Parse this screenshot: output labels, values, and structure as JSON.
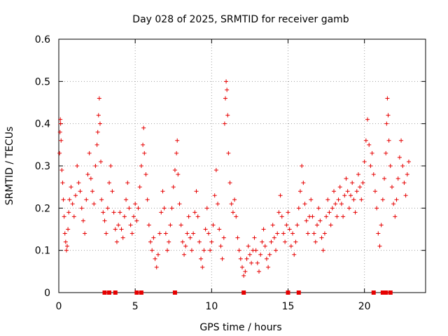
{
  "chart_data": {
    "type": "scatter",
    "title": "Day 028 of 2025, SRMTID for receiver gamb",
    "xlabel": "GPS time / hours",
    "ylabel": "SRMTID / TECUs",
    "xlim": [
      0,
      24
    ],
    "ylim": [
      0,
      0.6
    ],
    "x_ticks": [
      0,
      5,
      10,
      15,
      20
    ],
    "y_ticks": [
      0,
      0.1,
      0.2,
      0.3,
      0.4,
      0.5,
      0.6
    ],
    "x_tick_labels": [
      "0",
      "5",
      "10",
      "15",
      "20"
    ],
    "y_tick_labels": [
      "0",
      "0.1",
      "0.2",
      "0.3",
      "0.4",
      "0.5",
      "0.6"
    ],
    "grid": true,
    "marker": "+",
    "color": "#e60000",
    "series": [
      {
        "name": "SRMTID",
        "points": [
          [
            0.05,
            0.33
          ],
          [
            0.08,
            0.38
          ],
          [
            0.1,
            0.41
          ],
          [
            0.12,
            0.4
          ],
          [
            0.15,
            0.36
          ],
          [
            0.2,
            0.29
          ],
          [
            0.25,
            0.26
          ],
          [
            0.3,
            0.22
          ],
          [
            0.35,
            0.18
          ],
          [
            0.4,
            0.14
          ],
          [
            0.45,
            0.12
          ],
          [
            0.5,
            0.1
          ],
          [
            0.55,
            0.11
          ],
          [
            0.6,
            0.15
          ],
          [
            0.65,
            0.19
          ],
          [
            0.7,
            0.22
          ],
          [
            0.8,
            0.25
          ],
          [
            0.9,
            0.21
          ],
          [
            1.0,
            0.18
          ],
          [
            1.1,
            0.23
          ],
          [
            1.2,
            0.3
          ],
          [
            1.3,
            0.26
          ],
          [
            1.4,
            0.24
          ],
          [
            1.5,
            0.2
          ],
          [
            1.6,
            0.17
          ],
          [
            1.7,
            0.14
          ],
          [
            1.8,
            0.22
          ],
          [
            1.9,
            0.28
          ],
          [
            2.0,
            0.33
          ],
          [
            2.1,
            0.27
          ],
          [
            2.2,
            0.24
          ],
          [
            2.3,
            0.21
          ],
          [
            2.4,
            0.3
          ],
          [
            2.5,
            0.35
          ],
          [
            2.55,
            0.38
          ],
          [
            2.6,
            0.42
          ],
          [
            2.65,
            0.46
          ],
          [
            2.7,
            0.4
          ],
          [
            2.75,
            0.31
          ],
          [
            2.8,
            0.22
          ],
          [
            2.9,
            0.19
          ],
          [
            3.0,
            0.17
          ],
          [
            3.1,
            0.14
          ],
          [
            3.2,
            0.2
          ],
          [
            3.3,
            0.26
          ],
          [
            3.4,
            0.3
          ],
          [
            3.5,
            0.24
          ],
          [
            3.6,
            0.19
          ],
          [
            3.7,
            0.15
          ],
          [
            3.8,
            0.12
          ],
          [
            3.9,
            0.16
          ],
          [
            4.0,
            0.19
          ],
          [
            4.1,
            0.15
          ],
          [
            4.2,
            0.13
          ],
          [
            4.3,
            0.18
          ],
          [
            4.4,
            0.22
          ],
          [
            4.5,
            0.26
          ],
          [
            4.6,
            0.2
          ],
          [
            4.7,
            0.16
          ],
          [
            4.8,
            0.14
          ],
          [
            4.9,
            0.18
          ],
          [
            5.0,
            0.21
          ],
          [
            5.1,
            0.17
          ],
          [
            5.2,
            0.2
          ],
          [
            5.3,
            0.25
          ],
          [
            5.4,
            0.3
          ],
          [
            5.5,
            0.35
          ],
          [
            5.55,
            0.39
          ],
          [
            5.6,
            0.33
          ],
          [
            5.7,
            0.28
          ],
          [
            5.8,
            0.22
          ],
          [
            5.9,
            0.16
          ],
          [
            6.0,
            0.12
          ],
          [
            6.1,
            0.1
          ],
          [
            6.2,
            0.13
          ],
          [
            6.3,
            0.08
          ],
          [
            6.4,
            0.06
          ],
          [
            6.5,
            0.09
          ],
          [
            6.6,
            0.14
          ],
          [
            6.7,
            0.19
          ],
          [
            6.8,
            0.24
          ],
          [
            6.9,
            0.2
          ],
          [
            7.0,
            0.14
          ],
          [
            7.1,
            0.1
          ],
          [
            7.2,
            0.12
          ],
          [
            7.3,
            0.16
          ],
          [
            7.4,
            0.2
          ],
          [
            7.5,
            0.25
          ],
          [
            7.6,
            0.29
          ],
          [
            7.7,
            0.33
          ],
          [
            7.75,
            0.36
          ],
          [
            7.8,
            0.28
          ],
          [
            7.9,
            0.21
          ],
          [
            8.0,
            0.16
          ],
          [
            8.1,
            0.12
          ],
          [
            8.2,
            0.09
          ],
          [
            8.3,
            0.11
          ],
          [
            8.4,
            0.14
          ],
          [
            8.5,
            0.18
          ],
          [
            8.6,
            0.13
          ],
          [
            8.7,
            0.1
          ],
          [
            8.8,
            0.14
          ],
          [
            8.9,
            0.19
          ],
          [
            9.0,
            0.24
          ],
          [
            9.1,
            0.18
          ],
          [
            9.2,
            0.12
          ],
          [
            9.3,
            0.08
          ],
          [
            9.4,
            0.06
          ],
          [
            9.5,
            0.1
          ],
          [
            9.6,
            0.15
          ],
          [
            9.7,
            0.2
          ],
          [
            9.8,
            0.14
          ],
          [
            9.9,
            0.1
          ],
          [
            10.0,
            0.12
          ],
          [
            10.1,
            0.16
          ],
          [
            10.2,
            0.23
          ],
          [
            10.3,
            0.29
          ],
          [
            10.4,
            0.21
          ],
          [
            10.5,
            0.15
          ],
          [
            10.6,
            0.11
          ],
          [
            10.7,
            0.08
          ],
          [
            10.8,
            0.13
          ],
          [
            10.85,
            0.4
          ],
          [
            10.9,
            0.46
          ],
          [
            10.95,
            0.5
          ],
          [
            11.0,
            0.48
          ],
          [
            11.05,
            0.42
          ],
          [
            11.1,
            0.33
          ],
          [
            11.2,
            0.26
          ],
          [
            11.3,
            0.21
          ],
          [
            11.4,
            0.19
          ],
          [
            11.5,
            0.22
          ],
          [
            11.6,
            0.18
          ],
          [
            11.7,
            0.13
          ],
          [
            11.8,
            0.1
          ],
          [
            11.9,
            0.08
          ],
          [
            12.0,
            0.06
          ],
          [
            12.1,
            0.04
          ],
          [
            12.2,
            0.05
          ],
          [
            12.3,
            0.08
          ],
          [
            12.4,
            0.11
          ],
          [
            12.5,
            0.09
          ],
          [
            12.6,
            0.07
          ],
          [
            12.7,
            0.1
          ],
          [
            12.8,
            0.13
          ],
          [
            12.9,
            0.1
          ],
          [
            13.0,
            0.07
          ],
          [
            13.1,
            0.05
          ],
          [
            13.2,
            0.09
          ],
          [
            13.3,
            0.12
          ],
          [
            13.4,
            0.15
          ],
          [
            13.5,
            0.11
          ],
          [
            13.6,
            0.08
          ],
          [
            13.7,
            0.06
          ],
          [
            13.8,
            0.09
          ],
          [
            13.9,
            0.12
          ],
          [
            14.0,
            0.16
          ],
          [
            14.1,
            0.13
          ],
          [
            14.2,
            0.1
          ],
          [
            14.3,
            0.14
          ],
          [
            14.4,
            0.19
          ],
          [
            14.5,
            0.23
          ],
          [
            14.6,
            0.18
          ],
          [
            14.7,
            0.14
          ],
          [
            14.8,
            0.12
          ],
          [
            14.9,
            0.16
          ],
          [
            15.0,
            0.19
          ],
          [
            15.1,
            0.15
          ],
          [
            15.2,
            0.11
          ],
          [
            15.3,
            0.14
          ],
          [
            15.4,
            0.09
          ],
          [
            15.5,
            0.12
          ],
          [
            15.6,
            0.16
          ],
          [
            15.7,
            0.2
          ],
          [
            15.8,
            0.24
          ],
          [
            15.9,
            0.3
          ],
          [
            16.0,
            0.26
          ],
          [
            16.1,
            0.21
          ],
          [
            16.2,
            0.17
          ],
          [
            16.3,
            0.14
          ],
          [
            16.4,
            0.18
          ],
          [
            16.5,
            0.22
          ],
          [
            16.6,
            0.18
          ],
          [
            16.7,
            0.14
          ],
          [
            16.8,
            0.12
          ],
          [
            16.9,
            0.16
          ],
          [
            17.0,
            0.2
          ],
          [
            17.1,
            0.17
          ],
          [
            17.2,
            0.13
          ],
          [
            17.3,
            0.1
          ],
          [
            17.4,
            0.14
          ],
          [
            17.5,
            0.18
          ],
          [
            17.6,
            0.22
          ],
          [
            17.7,
            0.19
          ],
          [
            17.8,
            0.16
          ],
          [
            17.9,
            0.2
          ],
          [
            18.0,
            0.24
          ],
          [
            18.1,
            0.21
          ],
          [
            18.2,
            0.18
          ],
          [
            18.3,
            0.22
          ],
          [
            18.4,
            0.25
          ],
          [
            18.5,
            0.21
          ],
          [
            18.6,
            0.18
          ],
          [
            18.7,
            0.23
          ],
          [
            18.8,
            0.27
          ],
          [
            18.9,
            0.24
          ],
          [
            19.0,
            0.2
          ],
          [
            19.1,
            0.23
          ],
          [
            19.2,
            0.26
          ],
          [
            19.3,
            0.22
          ],
          [
            19.4,
            0.19
          ],
          [
            19.5,
            0.24
          ],
          [
            19.6,
            0.28
          ],
          [
            19.7,
            0.25
          ],
          [
            19.8,
            0.22
          ],
          [
            19.9,
            0.26
          ],
          [
            20.0,
            0.31
          ],
          [
            20.1,
            0.36
          ],
          [
            20.2,
            0.41
          ],
          [
            20.3,
            0.35
          ],
          [
            20.4,
            0.3
          ],
          [
            20.5,
            0.33
          ],
          [
            20.6,
            0.28
          ],
          [
            20.7,
            0.24
          ],
          [
            20.8,
            0.2
          ],
          [
            20.9,
            0.14
          ],
          [
            21.0,
            0.11
          ],
          [
            21.1,
            0.16
          ],
          [
            21.2,
            0.22
          ],
          [
            21.3,
            0.27
          ],
          [
            21.4,
            0.33
          ],
          [
            21.45,
            0.4
          ],
          [
            21.5,
            0.46
          ],
          [
            21.55,
            0.42
          ],
          [
            21.6,
            0.36
          ],
          [
            21.7,
            0.3
          ],
          [
            21.8,
            0.25
          ],
          [
            21.9,
            0.21
          ],
          [
            22.0,
            0.18
          ],
          [
            22.1,
            0.22
          ],
          [
            22.2,
            0.27
          ],
          [
            22.3,
            0.32
          ],
          [
            22.4,
            0.36
          ],
          [
            22.5,
            0.3
          ],
          [
            22.6,
            0.26
          ],
          [
            22.7,
            0.23
          ],
          [
            22.8,
            0.28
          ],
          [
            22.9,
            0.31
          ]
        ]
      }
    ],
    "zero_markers_x": [
      3.0,
      3.3,
      3.7,
      5.1,
      5.4,
      7.6,
      12.1,
      15.0,
      15.7,
      20.6,
      21.2,
      21.4,
      21.7
    ]
  }
}
